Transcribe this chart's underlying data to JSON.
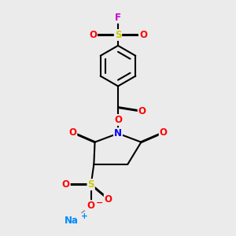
{
  "bg_color": "#ebebeb",
  "bond_color": "#000000",
  "bond_width": 1.5,
  "dbo": 0.018,
  "atom_colors": {
    "O": "#ff0000",
    "N": "#0000ff",
    "S": "#cccc00",
    "F": "#cc00cc",
    "Na": "#0088ff",
    "minus": "#ff0000",
    "plus": "#0088ff"
  },
  "fs": 8.5
}
